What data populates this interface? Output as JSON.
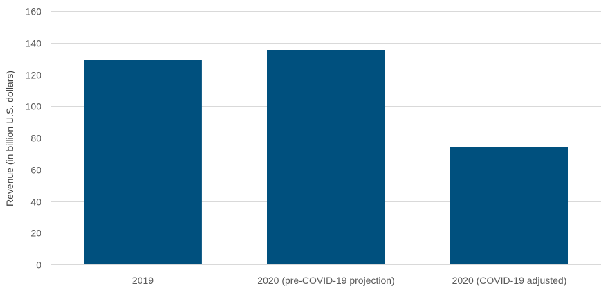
{
  "chart_data": {
    "type": "bar",
    "title": "",
    "xlabel": "",
    "ylabel": "Revenue (in billion U.S. dollars)",
    "categories": [
      "2019",
      "2020 (pre-COVID-19 projection)",
      "2020 (COVID-19 adjusted)"
    ],
    "values": [
      129,
      135.5,
      74
    ],
    "ylim": [
      0,
      160
    ],
    "yticks": [
      0,
      20,
      40,
      60,
      80,
      100,
      120,
      140,
      160
    ],
    "ytick_labels": [
      "0",
      "20",
      "40",
      "60",
      "80",
      "100",
      "120",
      "140",
      "160"
    ],
    "grid": true,
    "legend": "none",
    "bar_color": "#00507E",
    "gridline_color": "#D9D9D9"
  }
}
